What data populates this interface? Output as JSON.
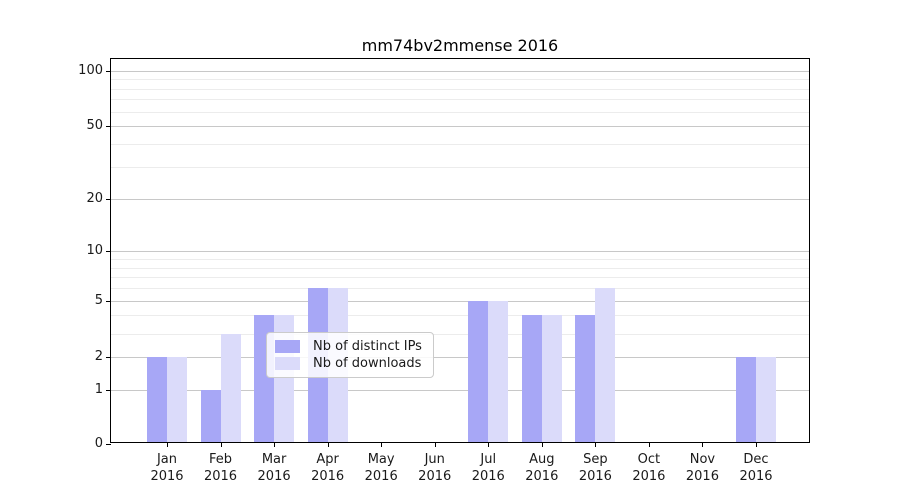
{
  "chart_data": {
    "type": "bar",
    "title": "mm74bv2mmense 2016",
    "categories": [
      "Jan 2016",
      "Feb 2016",
      "Mar 2016",
      "Apr 2016",
      "May 2016",
      "Jun 2016",
      "Jul 2016",
      "Aug 2016",
      "Sep 2016",
      "Oct 2016",
      "Nov 2016",
      "Dec 2016"
    ],
    "series": [
      {
        "name": "Nb of distinct IPs",
        "color": "#a7a7f6",
        "values": [
          2,
          1,
          4,
          6,
          0,
          0,
          5,
          4,
          4,
          0,
          0,
          2
        ]
      },
      {
        "name": "Nb of downloads",
        "color": "#dbdbfa",
        "values": [
          2,
          3,
          4,
          6,
          0,
          0,
          5,
          4,
          6,
          0,
          0,
          2
        ]
      }
    ],
    "xlabel": "",
    "ylabel": "",
    "yscale": "log1p",
    "ylim": [
      0,
      117
    ],
    "y_major_ticks": [
      0,
      1,
      2,
      5,
      10,
      20,
      50,
      100
    ],
    "y_minor_ticks": [
      3,
      4,
      6,
      7,
      8,
      9,
      30,
      40,
      60,
      70,
      80,
      90
    ],
    "grid": "horizontal",
    "legend_position": "lower-center"
  },
  "colors": {
    "background": "#ffffff",
    "axis": "#000000",
    "grid_major": "#c8c8c8",
    "grid_minor": "#ececec",
    "bar_distinct_ips": "#a7a7f6",
    "bar_downloads": "#dbdbfa"
  }
}
